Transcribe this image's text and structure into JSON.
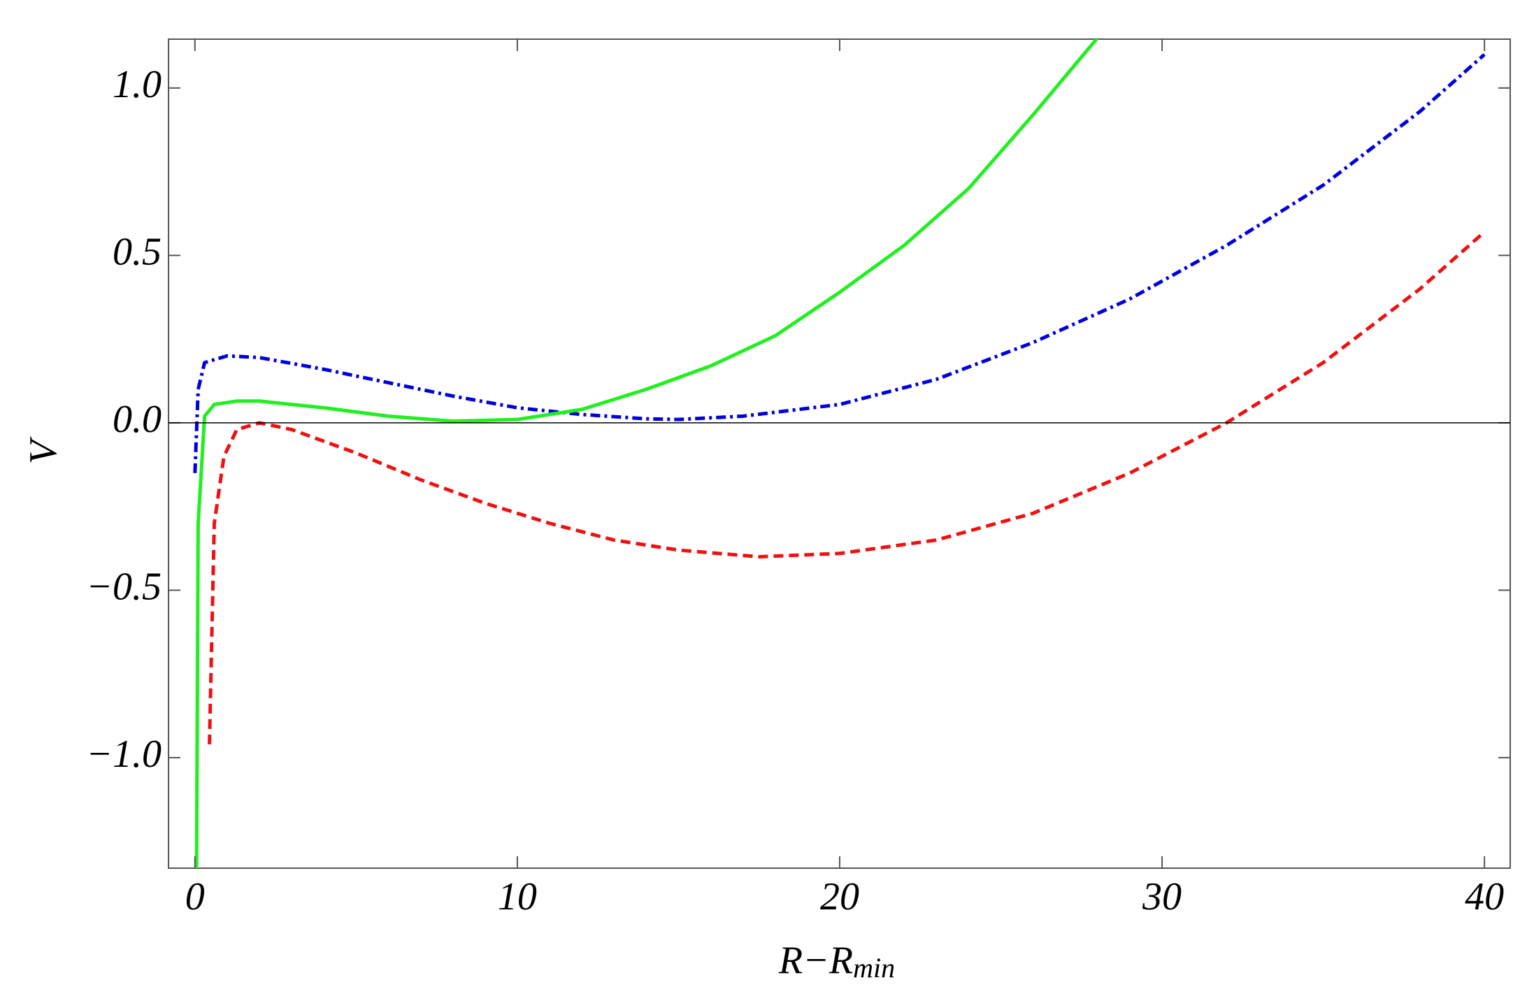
{
  "chart_data": {
    "type": "line",
    "xlabel": "R−R",
    "xlabel_sub": "min",
    "ylabel": "V",
    "xlim": [
      -0.82,
      40.8
    ],
    "ylim": [
      -1.33,
      1.146
    ],
    "xticks": [
      0,
      10,
      20,
      30,
      40
    ],
    "yticks": [
      {
        "value": -1,
        "label": "−1.0"
      },
      {
        "value": -0.5,
        "label": "−0.5"
      },
      {
        "value": 0,
        "label": "0.0"
      },
      {
        "value": 0.5,
        "label": "0.5"
      },
      {
        "value": 1,
        "label": "1.0"
      }
    ],
    "zero_line": true,
    "series": [
      {
        "color": "#ee1111",
        "dash": "14 8",
        "x": [
          0.45,
          0.6,
          0.9,
          1.3,
          2,
          3,
          5,
          7,
          9,
          11,
          13,
          15,
          17.5,
          20,
          23,
          26,
          29,
          32,
          35,
          38,
          40
        ],
        "values": [
          -0.96,
          -0.3,
          -0.1,
          -0.02,
          0,
          -0.02,
          -0.09,
          -0.17,
          -0.24,
          -0.3,
          -0.35,
          -0.38,
          -0.4,
          -0.39,
          -0.35,
          -0.27,
          -0.15,
          0,
          0.18,
          0.4,
          0.57
        ]
      },
      {
        "color": "#0000dd",
        "dash": "14 6 4 6",
        "x": [
          0,
          0.1,
          0.3,
          1,
          2,
          4,
          6,
          8,
          10,
          12,
          14,
          15,
          17,
          20,
          23,
          26,
          29,
          32,
          35,
          38,
          40
        ],
        "values": [
          -0.15,
          0.1,
          0.18,
          0.2,
          0.195,
          0.16,
          0.12,
          0.08,
          0.045,
          0.025,
          0.012,
          0.01,
          0.02,
          0.055,
          0.13,
          0.24,
          0.37,
          0.53,
          0.71,
          0.93,
          1.1
        ]
      },
      {
        "color": "#22ee22",
        "dash": "none",
        "x": [
          0.05,
          0.1,
          0.3,
          0.6,
          1.3,
          2,
          4,
          6,
          8,
          10,
          12,
          14,
          16,
          18,
          20,
          22,
          24,
          26,
          28
        ],
        "values": [
          -1.33,
          -0.3,
          0.02,
          0.055,
          0.065,
          0.065,
          0.045,
          0.02,
          0.005,
          0.01,
          0.04,
          0.1,
          0.17,
          0.26,
          0.39,
          0.53,
          0.7,
          0.92,
          1.15
        ]
      }
    ]
  }
}
